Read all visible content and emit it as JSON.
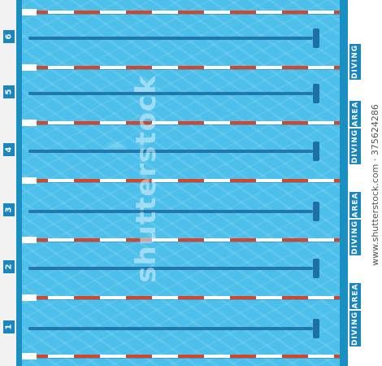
{
  "lanes": {
    "numbers": [
      "6",
      "5",
      "4",
      "3",
      "2",
      "1"
    ]
  },
  "diving_area": {
    "word1": "DIVING",
    "word2": "AREA",
    "count": 4
  },
  "watermark": {
    "center": "shutterstock",
    "vertical": "www.shutterstock.com · 375624286"
  },
  "colors": {
    "water": "#4cc0ea",
    "pool_edge": "#1a8fc2",
    "lane_marking": "#1d6fa5",
    "rope_red": "#d6452a",
    "rope_white": "#ffffff",
    "tag_bg": "#1b86bd"
  }
}
